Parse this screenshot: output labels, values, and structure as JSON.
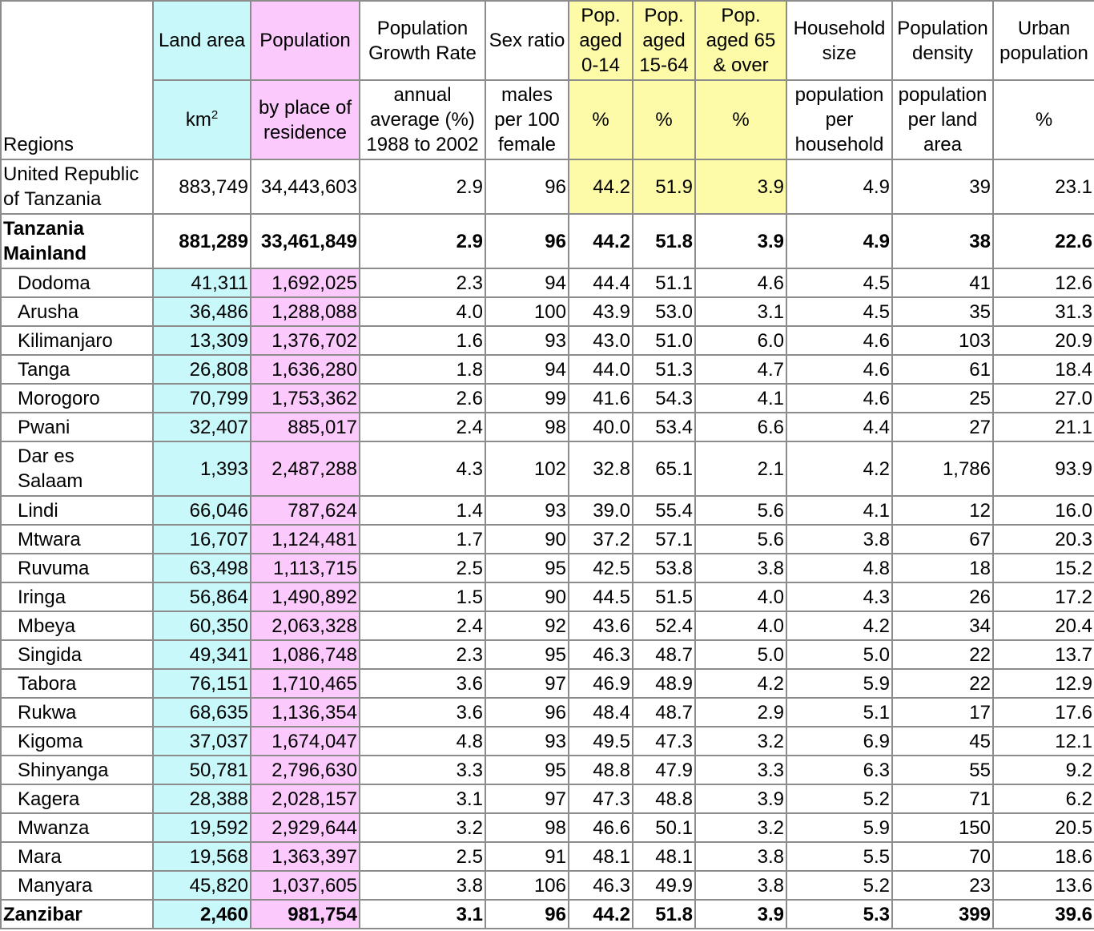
{
  "headers": {
    "regions": "Regions",
    "land_area": "Land area",
    "land_area_unit": "km",
    "land_area_unit_sup": "2",
    "population": "Population",
    "population_sub": "by place of residence",
    "growth": "Population Growth Rate",
    "growth_sub": "annual average (%) 1988 to 2002",
    "sex": "Sex ratio",
    "sex_sub": "males per 100 female",
    "pop014": "Pop. aged 0-14",
    "pop1564": "Pop. aged 15-64",
    "pop65": "Pop. aged 65 & over",
    "pct": "%",
    "household": "Household size",
    "household_sub": "population per household",
    "density": "Population density",
    "density_sub": "population per land area",
    "urban": "Urban population",
    "urban_sub": "%"
  },
  "colors": {
    "cyan": "#c8f8fa",
    "pink": "#fbc9fc",
    "yellow": "#fdfba8",
    "border": "#8c8c8c"
  },
  "rows": [
    {
      "name": "United Republic of Tanzania",
      "land": "883,749",
      "pop": "34,443,603",
      "growth": "2.9",
      "sex": "96",
      "p014": "44.2",
      "p1564": "51.9",
      "p65": "3.9",
      "hh": "4.9",
      "dens": "39",
      "urban": "23.1"
    },
    {
      "name": "Tanzania Mainland",
      "land": "881,289",
      "pop": "33,461,849",
      "growth": "2.9",
      "sex": "96",
      "p014": "44.2",
      "p1564": "51.8",
      "p65": "3.9",
      "hh": "4.9",
      "dens": "38",
      "urban": "22.6"
    },
    {
      "name": "Dodoma",
      "land": "41,311",
      "pop": "1,692,025",
      "growth": "2.3",
      "sex": "94",
      "p014": "44.4",
      "p1564": "51.1",
      "p65": "4.6",
      "hh": "4.5",
      "dens": "41",
      "urban": "12.6"
    },
    {
      "name": "Arusha",
      "land": "36,486",
      "pop": "1,288,088",
      "growth": "4.0",
      "sex": "100",
      "p014": "43.9",
      "p1564": "53.0",
      "p65": "3.1",
      "hh": "4.5",
      "dens": "35",
      "urban": "31.3"
    },
    {
      "name": "Kilimanjaro",
      "land": "13,309",
      "pop": "1,376,702",
      "growth": "1.6",
      "sex": "93",
      "p014": "43.0",
      "p1564": "51.0",
      "p65": "6.0",
      "hh": "4.6",
      "dens": "103",
      "urban": "20.9"
    },
    {
      "name": "Tanga",
      "land": "26,808",
      "pop": "1,636,280",
      "growth": "1.8",
      "sex": "94",
      "p014": "44.0",
      "p1564": "51.3",
      "p65": "4.7",
      "hh": "4.6",
      "dens": "61",
      "urban": "18.4"
    },
    {
      "name": "Morogoro",
      "land": "70,799",
      "pop": "1,753,362",
      "growth": "2.6",
      "sex": "99",
      "p014": "41.6",
      "p1564": "54.3",
      "p65": "4.1",
      "hh": "4.6",
      "dens": "25",
      "urban": "27.0"
    },
    {
      "name": "Pwani",
      "land": "32,407",
      "pop": "885,017",
      "growth": "2.4",
      "sex": "98",
      "p014": "40.0",
      "p1564": "53.4",
      "p65": "6.6",
      "hh": "4.4",
      "dens": "27",
      "urban": "21.1"
    },
    {
      "name": "Dar es Salaam",
      "land": "1,393",
      "pop": "2,487,288",
      "growth": "4.3",
      "sex": "102",
      "p014": "32.8",
      "p1564": "65.1",
      "p65": "2.1",
      "hh": "4.2",
      "dens": "1,786",
      "urban": "93.9"
    },
    {
      "name": "Lindi",
      "land": "66,046",
      "pop": "787,624",
      "growth": "1.4",
      "sex": "93",
      "p014": "39.0",
      "p1564": "55.4",
      "p65": "5.6",
      "hh": "4.1",
      "dens": "12",
      "urban": "16.0"
    },
    {
      "name": "Mtwara",
      "land": "16,707",
      "pop": "1,124,481",
      "growth": "1.7",
      "sex": "90",
      "p014": "37.2",
      "p1564": "57.1",
      "p65": "5.6",
      "hh": "3.8",
      "dens": "67",
      "urban": "20.3"
    },
    {
      "name": "Ruvuma",
      "land": "63,498",
      "pop": "1,113,715",
      "growth": "2.5",
      "sex": "95",
      "p014": "42.5",
      "p1564": "53.8",
      "p65": "3.8",
      "hh": "4.8",
      "dens": "18",
      "urban": "15.2"
    },
    {
      "name": "Iringa",
      "land": "56,864",
      "pop": "1,490,892",
      "growth": "1.5",
      "sex": "90",
      "p014": "44.5",
      "p1564": "51.5",
      "p65": "4.0",
      "hh": "4.3",
      "dens": "26",
      "urban": "17.2"
    },
    {
      "name": "Mbeya",
      "land": "60,350",
      "pop": "2,063,328",
      "growth": "2.4",
      "sex": "92",
      "p014": "43.6",
      "p1564": "52.4",
      "p65": "4.0",
      "hh": "4.2",
      "dens": "34",
      "urban": "20.4"
    },
    {
      "name": "Singida",
      "land": "49,341",
      "pop": "1,086,748",
      "growth": "2.3",
      "sex": "95",
      "p014": "46.3",
      "p1564": "48.7",
      "p65": "5.0",
      "hh": "5.0",
      "dens": "22",
      "urban": "13.7"
    },
    {
      "name": "Tabora",
      "land": "76,151",
      "pop": "1,710,465",
      "growth": "3.6",
      "sex": "97",
      "p014": "46.9",
      "p1564": "48.9",
      "p65": "4.2",
      "hh": "5.9",
      "dens": "22",
      "urban": "12.9"
    },
    {
      "name": "Rukwa",
      "land": "68,635",
      "pop": "1,136,354",
      "growth": "3.6",
      "sex": "96",
      "p014": "48.4",
      "p1564": "48.7",
      "p65": "2.9",
      "hh": "5.1",
      "dens": "17",
      "urban": "17.6"
    },
    {
      "name": "Kigoma",
      "land": "37,037",
      "pop": "1,674,047",
      "growth": "4.8",
      "sex": "93",
      "p014": "49.5",
      "p1564": "47.3",
      "p65": "3.2",
      "hh": "6.9",
      "dens": "45",
      "urban": "12.1"
    },
    {
      "name": "Shinyanga",
      "land": "50,781",
      "pop": "2,796,630",
      "growth": "3.3",
      "sex": "95",
      "p014": "48.8",
      "p1564": "47.9",
      "p65": "3.3",
      "hh": "6.3",
      "dens": "55",
      "urban": "9.2"
    },
    {
      "name": "Kagera",
      "land": "28,388",
      "pop": "2,028,157",
      "growth": "3.1",
      "sex": "97",
      "p014": "47.3",
      "p1564": "48.8",
      "p65": "3.9",
      "hh": "5.2",
      "dens": "71",
      "urban": "6.2"
    },
    {
      "name": "Mwanza",
      "land": "19,592",
      "pop": "2,929,644",
      "growth": "3.2",
      "sex": "98",
      "p014": "46.6",
      "p1564": "50.1",
      "p65": "3.2",
      "hh": "5.9",
      "dens": "150",
      "urban": "20.5"
    },
    {
      "name": "Mara",
      "land": "19,568",
      "pop": "1,363,397",
      "growth": "2.5",
      "sex": "91",
      "p014": "48.1",
      "p1564": "48.1",
      "p65": "3.8",
      "hh": "5.5",
      "dens": "70",
      "urban": "18.6"
    },
    {
      "name": "Manyara",
      "land": "45,820",
      "pop": "1,037,605",
      "growth": "3.8",
      "sex": "106",
      "p014": "46.3",
      "p1564": "49.9",
      "p65": "3.8",
      "hh": "5.2",
      "dens": "23",
      "urban": "13.6"
    },
    {
      "name": "Zanzibar",
      "land": "2,460",
      "pop": "981,754",
      "growth": "3.1",
      "sex": "96",
      "p014": "44.2",
      "p1564": "51.8",
      "p65": "3.9",
      "hh": "5.3",
      "dens": "399",
      "urban": "39.6"
    }
  ]
}
